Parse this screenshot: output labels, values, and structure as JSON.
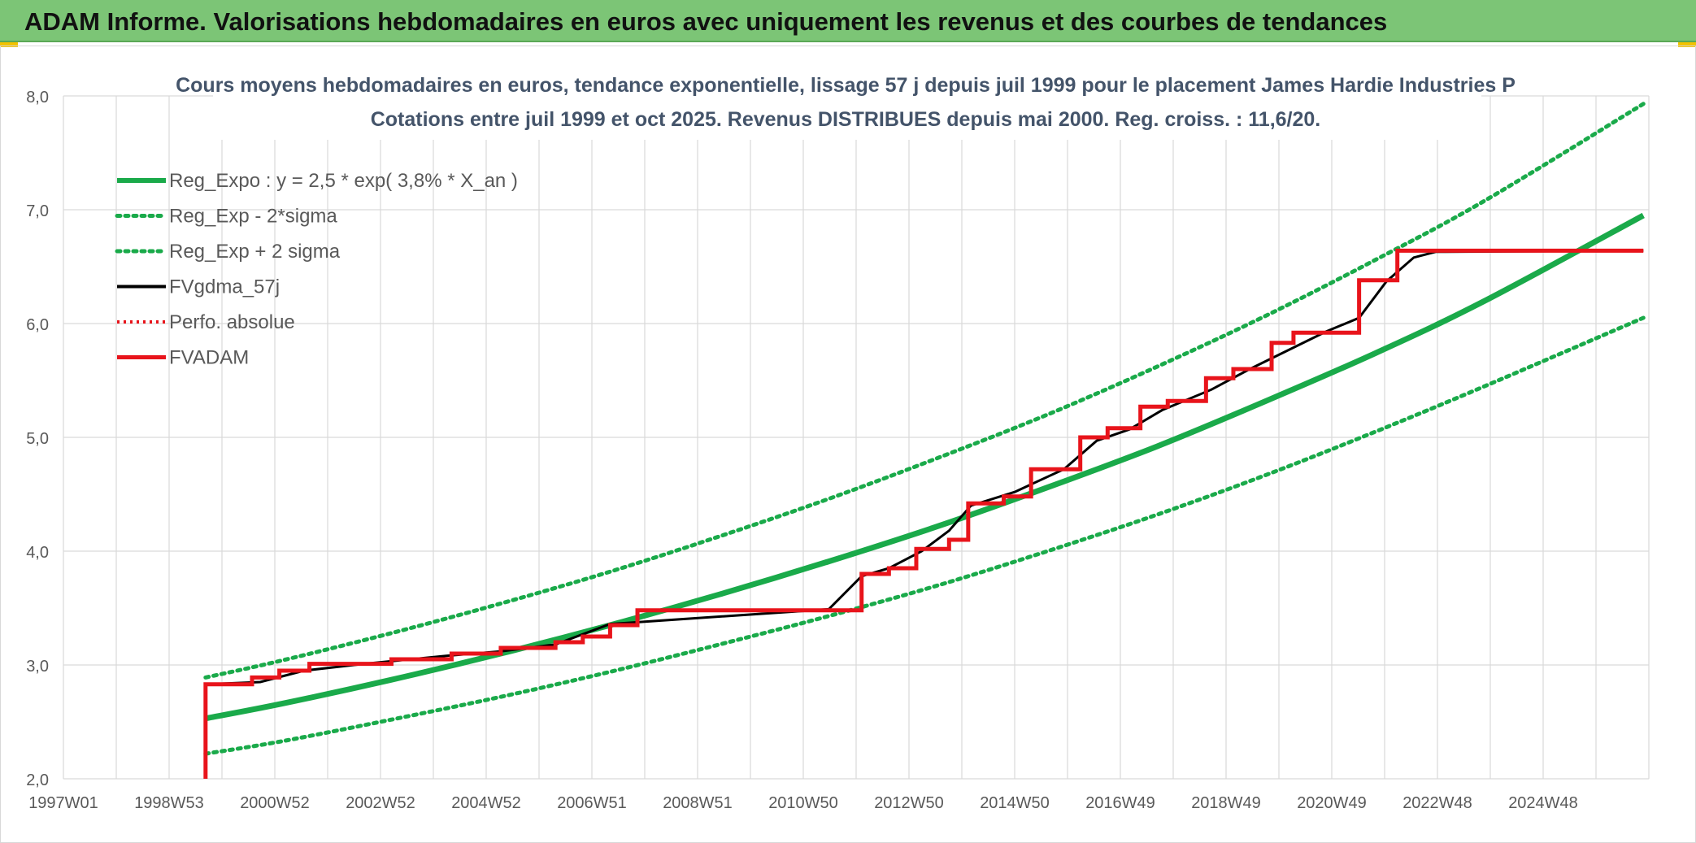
{
  "page": {
    "banner_title": "ADAM Informe. Valorisations hebdomadaires en euros avec uniquement les revenus et des courbes de tendances"
  },
  "colors": {
    "banner": "#7cc576",
    "green": "#1aaa4a",
    "green_dotted": "#1aaa4a",
    "red": "#e8141b",
    "black": "#000000",
    "grid": "#d9d9d9"
  },
  "chart_data": {
    "type": "line",
    "title_line1": "Cours moyens hebdomadaires en euros, tendance exponentielle, lissage 57 j depuis juil 1999 pour le placement James Hardie Industries P",
    "title_line2": "Cotations entre juil 1999 et oct 2025. Revenus DISTRIBUES depuis mai 2000. Reg. croiss. : 11,6/20.",
    "x_tick_labels": [
      "1997W01",
      "1998W53",
      "2000W52",
      "2002W52",
      "2004W52",
      "2006W51",
      "2008W51",
      "2010W50",
      "2012W50",
      "2014W50",
      "2016W49",
      "2018W49",
      "2020W49",
      "2022W48",
      "2024W48"
    ],
    "y_tick_labels": [
      "2,0",
      "3,0",
      "4,0",
      "5,0",
      "6,0",
      "7,0",
      "8,0"
    ],
    "x_range": [
      1997.0,
      2026.0
    ],
    "ylim": [
      2.0,
      8.0
    ],
    "grid": true,
    "legend_position": "top-left",
    "series": [
      {
        "name": "Reg_Expo : y = 2,5 * exp( 3,8% *  X_an )",
        "style": "solid-green",
        "x": [
          1999.6,
          2001,
          2003,
          2005,
          2007,
          2009,
          2011,
          2013,
          2015,
          2017,
          2019,
          2021,
          2023,
          2025.9
        ],
        "y": [
          2.53,
          2.66,
          2.87,
          3.1,
          3.35,
          3.62,
          3.91,
          4.22,
          4.56,
          4.92,
          5.32,
          5.74,
          6.2,
          6.95
        ]
      },
      {
        "name": "Reg_Exp - 2*sigma",
        "style": "dotted-green",
        "x": [
          1999.6,
          2001,
          2003,
          2005,
          2007,
          2009,
          2011,
          2013,
          2015,
          2017,
          2019,
          2021,
          2023,
          2025.9
        ],
        "y": [
          2.22,
          2.33,
          2.52,
          2.72,
          2.94,
          3.18,
          3.43,
          3.7,
          4.0,
          4.32,
          4.67,
          5.05,
          5.45,
          6.05
        ]
      },
      {
        "name": "Reg_Exp + 2 sigma",
        "style": "dotted-green",
        "x": [
          1999.6,
          2001,
          2003,
          2005,
          2007,
          2009,
          2011,
          2013,
          2015,
          2017,
          2019,
          2021,
          2023,
          2025.9
        ],
        "y": [
          2.89,
          3.04,
          3.28,
          3.54,
          3.82,
          4.13,
          4.46,
          4.82,
          5.2,
          5.62,
          6.07,
          6.56,
          7.08,
          7.93
        ]
      },
      {
        "name": "FVgdma_57j",
        "style": "solid-black",
        "x": [
          1999.6,
          2000.6,
          2001.0,
          2001.4,
          2002.5,
          2004.0,
          2005.0,
          2006.0,
          2007.0,
          2011.0,
          2011.6,
          2012.1,
          2012.7,
          2013.2,
          2013.6,
          2014.4,
          2015.3,
          2015.9,
          2016.5,
          2017.1,
          2018.0,
          2018.7,
          2020.1,
          2020.7,
          2021.2,
          2021.7,
          2022.1,
          2025.9
        ],
        "y": [
          2.83,
          2.85,
          2.9,
          2.95,
          3.01,
          3.08,
          3.12,
          3.18,
          3.36,
          3.49,
          3.78,
          3.85,
          4.0,
          4.18,
          4.4,
          4.52,
          4.72,
          4.97,
          5.07,
          5.24,
          5.42,
          5.6,
          5.93,
          6.05,
          6.37,
          6.58,
          6.63,
          6.64
        ]
      },
      {
        "name": "Perfo. absolue",
        "style": "dotted-red",
        "x": [],
        "y": []
      },
      {
        "name": "FVADAM",
        "style": "solid-red",
        "x": [
          1999.6,
          1999.6,
          2000.45,
          2000.45,
          2000.95,
          2000.95,
          2001.5,
          2001.5,
          2003.0,
          2003.0,
          2004.1,
          2004.1,
          2005.0,
          2005.0,
          2006.0,
          2006.0,
          2006.5,
          2006.5,
          2007.0,
          2007.0,
          2007.5,
          2007.5,
          2011.6,
          2011.6,
          2012.1,
          2012.1,
          2012.6,
          2012.6,
          2013.2,
          2013.2,
          2013.55,
          2013.55,
          2014.2,
          2014.2,
          2014.7,
          2014.7,
          2015.6,
          2015.6,
          2016.1,
          2016.1,
          2016.7,
          2016.7,
          2017.2,
          2017.2,
          2017.9,
          2017.9,
          2018.4,
          2018.4,
          2019.1,
          2019.1,
          2019.5,
          2019.5,
          2020.7,
          2020.7,
          2021.4,
          2021.4,
          2025.9
        ],
        "y": [
          2.0,
          2.83,
          2.83,
          2.89,
          2.89,
          2.95,
          2.95,
          3.01,
          3.01,
          3.05,
          3.05,
          3.1,
          3.1,
          3.15,
          3.15,
          3.2,
          3.2,
          3.25,
          3.25,
          3.35,
          3.35,
          3.48,
          3.48,
          3.8,
          3.8,
          3.85,
          3.85,
          4.02,
          4.02,
          4.1,
          4.1,
          4.42,
          4.42,
          4.48,
          4.48,
          4.72,
          4.72,
          5.0,
          5.0,
          5.08,
          5.08,
          5.27,
          5.27,
          5.32,
          5.32,
          5.52,
          5.52,
          5.6,
          5.6,
          5.83,
          5.83,
          5.92,
          5.92,
          6.38,
          6.38,
          6.64,
          6.64
        ]
      }
    ]
  }
}
